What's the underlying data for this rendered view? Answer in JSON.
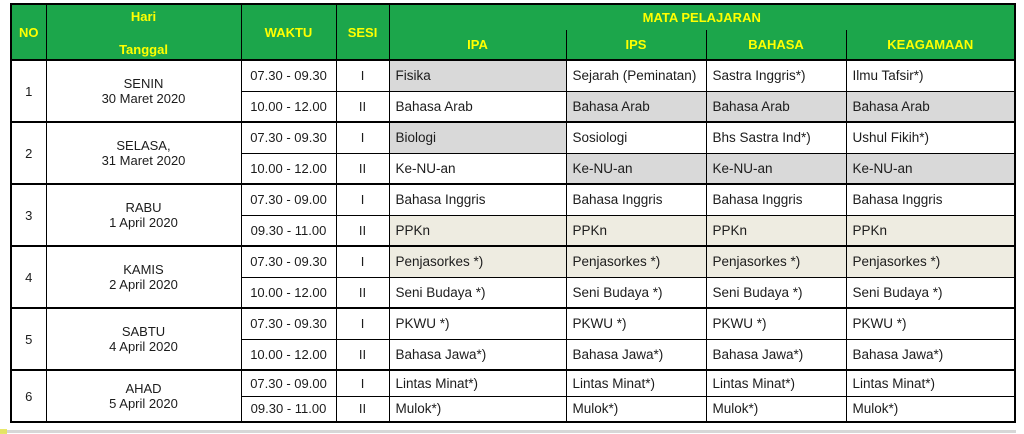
{
  "colors": {
    "header_bg": "#1CA64B",
    "header_text": "#FFFF00",
    "border": "#000000",
    "cell": {
      "white": "#FFFFFF",
      "gray": "#D9D9D9",
      "cream": "#EEECE1"
    }
  },
  "header": {
    "no": "NO",
    "hari": "Hari",
    "tanggal": "Tanggal",
    "waktu": "WAKTU",
    "sesi": "SESI",
    "mata_pelajaran": "MATA PELAJARAN",
    "streams": [
      "IPA",
      "IPS",
      "BAHASA",
      "KEAGAMAAN"
    ]
  },
  "rows": [
    {
      "no": "1",
      "day": "SENIN",
      "date": "30 Maret 2020",
      "sessions": [
        {
          "time": "07.30 - 09.30",
          "sesi": "I",
          "subjects": [
            "Fisika",
            "Sejarah (Peminatan)",
            "Sastra Inggris*)",
            "Ilmu Tafsir*)"
          ],
          "bg": [
            "gray",
            "white",
            "white",
            "white"
          ]
        },
        {
          "time": "10.00 - 12.00",
          "sesi": "II",
          "subjects": [
            "Bahasa Arab",
            "Bahasa Arab",
            "Bahasa Arab",
            "Bahasa Arab"
          ],
          "bg": [
            "white",
            "gray",
            "gray",
            "gray"
          ]
        }
      ]
    },
    {
      "no": "2",
      "day": "SELASA,",
      "date": "31 Maret 2020",
      "sessions": [
        {
          "time": "07.30 - 09.30",
          "sesi": "I",
          "subjects": [
            "Biologi",
            "Sosiologi",
            "Bhs Sastra Ind*)",
            "Ushul Fikih*)"
          ],
          "bg": [
            "gray",
            "white",
            "white",
            "white"
          ]
        },
        {
          "time": "10.00 - 12.00",
          "sesi": "II",
          "subjects": [
            "Ke-NU-an",
            "Ke-NU-an",
            "Ke-NU-an",
            "Ke-NU-an"
          ],
          "bg": [
            "white",
            "gray",
            "gray",
            "gray"
          ]
        }
      ]
    },
    {
      "no": "3",
      "day": "RABU",
      "date": "1 April 2020",
      "sessions": [
        {
          "time": "07.30 - 09.00",
          "sesi": "I",
          "subjects": [
            "Bahasa Inggris",
            "Bahasa Inggris",
            "Bahasa Inggris",
            "Bahasa Inggris"
          ],
          "bg": [
            "white",
            "white",
            "white",
            "white"
          ]
        },
        {
          "time": "09.30 - 11.00",
          "sesi": "II",
          "subjects": [
            "PPKn",
            "PPKn",
            "PPKn",
            "PPKn"
          ],
          "bg": [
            "cream",
            "cream",
            "cream",
            "cream"
          ]
        }
      ]
    },
    {
      "no": "4",
      "day": "KAMIS",
      "date": "2 April 2020",
      "sessions": [
        {
          "time": "07.30 - 09.30",
          "sesi": "I",
          "subjects": [
            "Penjasorkes *)",
            "Penjasorkes *)",
            "Penjasorkes *)",
            "Penjasorkes *)"
          ],
          "bg": [
            "cream",
            "cream",
            "cream",
            "cream"
          ]
        },
        {
          "time": "10.00 - 12.00",
          "sesi": "II",
          "subjects": [
            "Seni Budaya *)",
            "Seni Budaya *)",
            "Seni Budaya *)",
            "Seni Budaya *)"
          ],
          "bg": [
            "white",
            "white",
            "white",
            "white"
          ]
        }
      ]
    },
    {
      "no": "5",
      "day": "SABTU",
      "date": "4 April 2020",
      "sessions": [
        {
          "time": "07.30 - 09.30",
          "sesi": "I",
          "subjects": [
            "PKWU *)",
            "PKWU *)",
            "PKWU *)",
            "PKWU *)"
          ],
          "bg": [
            "white",
            "white",
            "white",
            "white"
          ]
        },
        {
          "time": "10.00 - 12.00",
          "sesi": "II",
          "subjects": [
            "Bahasa Jawa*)",
            "Bahasa Jawa*)",
            "Bahasa Jawa*)",
            "Bahasa Jawa*)"
          ],
          "bg": [
            "white",
            "white",
            "white",
            "white"
          ]
        }
      ]
    },
    {
      "no": "6",
      "day": "AHAD",
      "date": "5 April 2020",
      "sessions": [
        {
          "time": "07.30 - 09.00",
          "sesi": "I",
          "subjects": [
            "Lintas Minat*)",
            "Lintas Minat*)",
            "Lintas Minat*)",
            "Lintas Minat*)"
          ],
          "bg": [
            "white",
            "white",
            "white",
            "white"
          ]
        },
        {
          "time": "09.30 - 11.00",
          "sesi": "II",
          "subjects": [
            "Mulok*)",
            "Mulok*)",
            "Mulok*)",
            "Mulok*)"
          ],
          "bg": [
            "white",
            "white",
            "white",
            "white"
          ]
        }
      ]
    }
  ]
}
